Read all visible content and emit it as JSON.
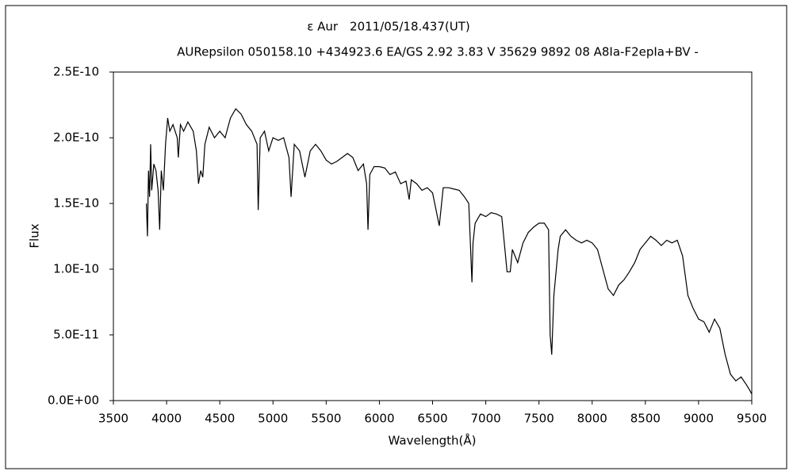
{
  "chart_data": {
    "type": "line",
    "title": "ε Aur　2011/05/18.437(UT)",
    "subtitle": "AURepsilon 050158.10 +434923.6 EA/GS 2.92 3.83 V 35629 9892 08 A8Ia-F2epIa+BV -",
    "x_label": "Wavelength(Å)",
    "y_label": "Flux",
    "xlim": [
      3500,
      9500
    ],
    "xticks": [
      3500,
      4000,
      4500,
      5000,
      5500,
      6000,
      6500,
      7000,
      7500,
      8000,
      8500,
      9000,
      9500
    ],
    "ylim": [
      0,
      2.5e-10
    ],
    "yticks": [
      {
        "value": 0,
        "label": "0.0E+00"
      },
      {
        "value": 5e-11,
        "label": "5.0E-11"
      },
      {
        "value": 1e-10,
        "label": "1.0E-10"
      },
      {
        "value": 1.5e-10,
        "label": "1.5E-10"
      },
      {
        "value": 2e-10,
        "label": "2.0E-10"
      },
      {
        "value": 2.5e-10,
        "label": "2.5E-10"
      }
    ],
    "grid": false,
    "x": [
      3810,
      3820,
      3830,
      3840,
      3850,
      3860,
      3880,
      3900,
      3920,
      3935,
      3950,
      3970,
      3990,
      4010,
      4030,
      4060,
      4100,
      4110,
      4130,
      4160,
      4200,
      4250,
      4280,
      4300,
      4320,
      4340,
      4360,
      4400,
      4450,
      4500,
      4550,
      4600,
      4650,
      4700,
      4750,
      4800,
      4850,
      4861,
      4880,
      4920,
      4960,
      5000,
      5050,
      5100,
      5150,
      5170,
      5200,
      5250,
      5300,
      5350,
      5400,
      5450,
      5500,
      5550,
      5600,
      5650,
      5700,
      5750,
      5800,
      5850,
      5880,
      5893,
      5910,
      5950,
      6000,
      6050,
      6100,
      6150,
      6200,
      6250,
      6280,
      6300,
      6350,
      6400,
      6450,
      6500,
      6563,
      6600,
      6650,
      6700,
      6750,
      6800,
      6840,
      6870,
      6880,
      6900,
      6950,
      7000,
      7050,
      7100,
      7150,
      7180,
      7200,
      7230,
      7250,
      7300,
      7350,
      7400,
      7450,
      7500,
      7550,
      7590,
      7605,
      7620,
      7640,
      7680,
      7700,
      7750,
      7800,
      7850,
      7900,
      7950,
      8000,
      8050,
      8100,
      8150,
      8200,
      8250,
      8300,
      8350,
      8400,
      8450,
      8500,
      8550,
      8600,
      8650,
      8700,
      8750,
      8800,
      8850,
      8900,
      8950,
      9000,
      9050,
      9100,
      9150,
      9200,
      9250,
      9300,
      9350,
      9400,
      9450,
      9480,
      9500
    ],
    "series": [
      {
        "color": "#000000",
        "values": [
          1.5e-10,
          1.25e-10,
          1.75e-10,
          1.55e-10,
          1.95e-10,
          1.6e-10,
          1.8e-10,
          1.75e-10,
          1.6e-10,
          1.3e-10,
          1.75e-10,
          1.6e-10,
          1.95e-10,
          2.15e-10,
          2.05e-10,
          2.1e-10,
          2e-10,
          1.85e-10,
          2.1e-10,
          2.05e-10,
          2.12e-10,
          2.05e-10,
          1.9e-10,
          1.65e-10,
          1.75e-10,
          1.7e-10,
          1.95e-10,
          2.08e-10,
          2e-10,
          2.05e-10,
          2e-10,
          2.15e-10,
          2.22e-10,
          2.18e-10,
          2.1e-10,
          2.05e-10,
          1.95e-10,
          1.45e-10,
          2e-10,
          2.05e-10,
          1.9e-10,
          2e-10,
          1.98e-10,
          2e-10,
          1.85e-10,
          1.55e-10,
          1.95e-10,
          1.9e-10,
          1.7e-10,
          1.9e-10,
          1.95e-10,
          1.9e-10,
          1.83e-10,
          1.8e-10,
          1.82e-10,
          1.85e-10,
          1.88e-10,
          1.85e-10,
          1.75e-10,
          1.8e-10,
          1.65e-10,
          1.3e-10,
          1.72e-10,
          1.78e-10,
          1.78e-10,
          1.77e-10,
          1.72e-10,
          1.74e-10,
          1.65e-10,
          1.67e-10,
          1.53e-10,
          1.68e-10,
          1.65e-10,
          1.6e-10,
          1.62e-10,
          1.58e-10,
          1.33e-10,
          1.62e-10,
          1.62e-10,
          1.61e-10,
          1.6e-10,
          1.55e-10,
          1.5e-10,
          9e-11,
          1.2e-10,
          1.35e-10,
          1.42e-10,
          1.4e-10,
          1.43e-10,
          1.42e-10,
          1.4e-10,
          1.15e-10,
          9.8e-11,
          9.8e-11,
          1.15e-10,
          1.05e-10,
          1.2e-10,
          1.28e-10,
          1.32e-10,
          1.35e-10,
          1.35e-10,
          1.3e-10,
          5e-11,
          3.5e-11,
          8e-11,
          1.15e-10,
          1.25e-10,
          1.3e-10,
          1.25e-10,
          1.22e-10,
          1.2e-10,
          1.22e-10,
          1.2e-10,
          1.15e-10,
          1e-10,
          8.5e-11,
          8e-11,
          8.8e-11,
          9.2e-11,
          9.8e-11,
          1.05e-10,
          1.15e-10,
          1.2e-10,
          1.25e-10,
          1.22e-10,
          1.18e-10,
          1.22e-10,
          1.2e-10,
          1.22e-10,
          1.1e-10,
          8e-11,
          7e-11,
          6.2e-11,
          6e-11,
          5.2e-11,
          6.2e-11,
          5.5e-11,
          3.5e-11,
          2e-11,
          1.5e-11,
          1.8e-11,
          1.2e-11,
          8e-12,
          5e-12
        ]
      }
    ]
  }
}
